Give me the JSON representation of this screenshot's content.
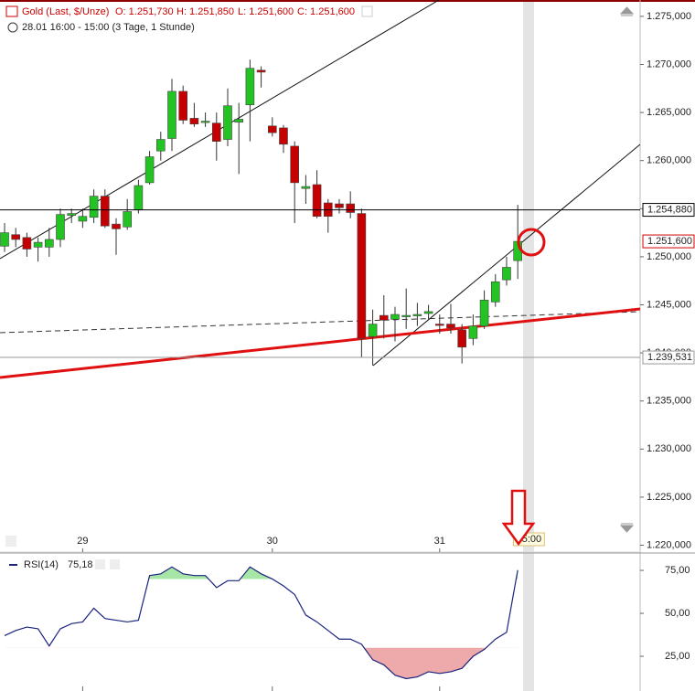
{
  "header": {
    "instrument": "Gold (Last, $/Unze)",
    "open": "O: 1.251,730",
    "high": "H: 1.251,850",
    "low": "L: 1.251,600",
    "close": "C: 1.251,600",
    "period": "28.01 16:00 - 15:00 (3 Tage, 1 Stunde)"
  },
  "chart_data": [
    {
      "type": "candlestick",
      "up_color": "#22c322",
      "down_color": "#c40000",
      "open": [
        1251.1,
        1252.3,
        1252.0,
        1251.0,
        1251.0,
        1251.8,
        1254.3,
        1253.7,
        1254.1,
        1256.3,
        1253.4,
        1253.1,
        1254.9,
        1257.7,
        1261.0,
        1262.3,
        1267.2,
        1264.4,
        1264.0,
        1263.9,
        1262.2,
        1264.0,
        1265.8,
        1269.4,
        1263.6,
        1263.4,
        1261.5,
        1257.1,
        1257.5,
        1255.6,
        1255.5,
        1255.5,
        1254.5,
        1241.7,
        1243.9,
        1243.5,
        1243.8,
        1243.9,
        1244.1,
        1243.0,
        1243.0,
        1242.4,
        1241.5,
        1242.8,
        1245.3,
        1247.6,
        1249.6
      ],
      "high": [
        1253.5,
        1253.0,
        1252.5,
        1252.0,
        1253.0,
        1255.0,
        1255.0,
        1255.0,
        1257.0,
        1257.0,
        1254.0,
        1256.0,
        1258.0,
        1261.0,
        1263.0,
        1268.5,
        1267.8,
        1266.0,
        1265.0,
        1265.0,
        1267.5,
        1266.0,
        1270.5,
        1269.8,
        1264.5,
        1263.7,
        1262.0,
        1258.5,
        1259.0,
        1256.0,
        1256.0,
        1256.8,
        1255.0,
        1244.5,
        1246.0,
        1244.8,
        1246.7,
        1245.2,
        1245.0,
        1244.0,
        1245.1,
        1243.0,
        1244.0,
        1246.5,
        1248.2,
        1250.0,
        1255.4
      ],
      "low": [
        1250.5,
        1251.0,
        1250.0,
        1249.5,
        1250.0,
        1251.0,
        1253.5,
        1253.0,
        1253.5,
        1253.0,
        1250.2,
        1252.8,
        1254.5,
        1257.5,
        1260.0,
        1261.0,
        1263.8,
        1263.5,
        1263.5,
        1260.0,
        1261.5,
        1258.6,
        1262.0,
        1267.6,
        1262.5,
        1260.8,
        1253.5,
        1255.5,
        1254.0,
        1252.5,
        1254.5,
        1254.0,
        1239.5,
        1238.7,
        1241.5,
        1241.2,
        1242.5,
        1242.8,
        1243.5,
        1242.0,
        1242.0,
        1238.9,
        1240.8,
        1242.5,
        1244.8,
        1247.0,
        1247.7
      ],
      "close": [
        1252.5,
        1251.8,
        1250.8,
        1251.5,
        1251.8,
        1254.4,
        1254.5,
        1254.2,
        1256.3,
        1253.2,
        1252.9,
        1254.7,
        1257.4,
        1260.4,
        1262.2,
        1267.2,
        1264.2,
        1263.8,
        1264.1,
        1262.0,
        1265.7,
        1264.3,
        1269.6,
        1269.2,
        1262.9,
        1261.7,
        1257.7,
        1257.3,
        1254.2,
        1254.2,
        1255.1,
        1254.6,
        1241.5,
        1243.0,
        1243.4,
        1244.0,
        1243.9,
        1244.0,
        1244.3,
        1242.9,
        1242.6,
        1240.6,
        1242.8,
        1245.5,
        1247.4,
        1248.9,
        1251.6
      ],
      "xlim": [
        -0.41,
        56.97
      ],
      "xticks": [
        {
          "value": 7,
          "label": "29"
        },
        {
          "value": 24,
          "label": "30"
        },
        {
          "value": 39,
          "label": "31"
        }
      ],
      "cursor": {
        "value": 47,
        "label": "15:00"
      },
      "ylim": [
        1219.1,
        1276.7
      ],
      "yticks": [
        {
          "value": 1275,
          "label": "1.275,000"
        },
        {
          "value": 1270,
          "label": "1.270,000"
        },
        {
          "value": 1265,
          "label": "1.265,000"
        },
        {
          "value": 1260,
          "label": "1.260,000"
        },
        {
          "value": 1255,
          "label": "1.255,000"
        },
        {
          "value": 1250,
          "label": "1.250,000"
        },
        {
          "value": 1245,
          "label": "1.245,000"
        },
        {
          "value": 1240,
          "label": "1.240,000"
        },
        {
          "value": 1235,
          "label": "1.235,000"
        },
        {
          "value": 1230,
          "label": "1.230,000"
        },
        {
          "value": 1225,
          "label": "1.225,000"
        },
        {
          "value": 1220,
          "label": "1.220,000"
        }
      ],
      "levels": [
        {
          "value": 1254.88,
          "label": "1.254,880",
          "color": "#000000"
        },
        {
          "value": 1239.531,
          "label": "1.239,531",
          "color": "#999999"
        }
      ],
      "last_price": {
        "value": 1251.6,
        "label": "1.251,600",
        "color": "#d00000"
      }
    },
    {
      "type": "line",
      "name": "RSI(14)",
      "value_label": "75,18",
      "color": "#1a237e",
      "values": [
        37,
        40,
        42,
        41,
        31,
        41,
        44,
        45,
        53,
        47,
        46,
        45,
        46,
        72,
        73,
        77,
        73,
        72,
        72,
        65,
        69,
        69,
        77,
        73,
        70,
        66,
        61,
        49,
        45,
        40,
        35,
        35,
        32,
        23,
        20,
        14,
        12,
        13,
        16,
        15,
        16,
        18,
        25,
        29,
        35,
        39,
        75.18
      ],
      "overbought": 70,
      "oversold": 30,
      "overbought_color": "#a8e6a8",
      "oversold_color": "#eeaaaa",
      "xlim": [
        -0.41,
        56.97
      ],
      "ylim": [
        4.8,
        84.6
      ],
      "yticks": [
        {
          "value": 75,
          "label": "75,00"
        },
        {
          "value": 50,
          "label": "50,00"
        },
        {
          "value": 25,
          "label": "25,00"
        }
      ]
    }
  ]
}
